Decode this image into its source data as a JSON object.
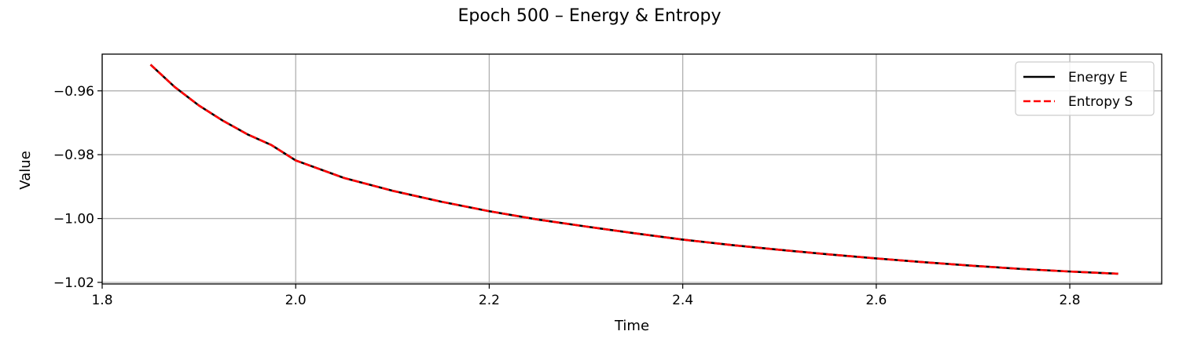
{
  "chart_data": {
    "type": "line",
    "title": "Epoch 500 – Energy & Entropy",
    "xlabel": "Time",
    "ylabel": "Value",
    "xlim": [
      1.8,
      2.895
    ],
    "ylim": [
      -1.0205,
      -0.9485
    ],
    "xticks": [
      1.8,
      2.0,
      2.2,
      2.4,
      2.6,
      2.8
    ],
    "xtick_labels": [
      "1.8",
      "2.0",
      "2.2",
      "2.4",
      "2.6",
      "2.8"
    ],
    "yticks": [
      -1.02,
      -1.0,
      -0.98,
      -0.96
    ],
    "ytick_labels": [
      "−1.02",
      "−1.00",
      "−0.98",
      "−0.96"
    ],
    "grid": true,
    "legend_position": "top-right",
    "x": [
      1.85,
      1.875,
      1.9,
      1.925,
      1.95,
      1.975,
      2.0,
      2.05,
      2.1,
      2.15,
      2.2,
      2.25,
      2.3,
      2.35,
      2.4,
      2.45,
      2.5,
      2.55,
      2.6,
      2.65,
      2.7,
      2.75,
      2.8,
      2.85
    ],
    "series": [
      {
        "name": "Energy E",
        "color": "#000000",
        "dash": "solid",
        "values": [
          -0.9518,
          -0.9588,
          -0.9646,
          -0.9694,
          -0.9736,
          -0.977,
          -0.9818,
          -0.9873,
          -0.9913,
          -0.9947,
          -0.9977,
          -1.0003,
          -1.0025,
          -1.0046,
          -1.0066,
          -1.0083,
          -1.0098,
          -1.0112,
          -1.0125,
          -1.0137,
          -1.0148,
          -1.0158,
          -1.0166,
          -1.0173
        ]
      },
      {
        "name": "Entropy S",
        "color": "#ff0000",
        "dash": "dashed",
        "values": [
          -0.9518,
          -0.9588,
          -0.9646,
          -0.9694,
          -0.9736,
          -0.977,
          -0.9818,
          -0.9873,
          -0.9913,
          -0.9947,
          -0.9977,
          -1.0003,
          -1.0025,
          -1.0046,
          -1.0066,
          -1.0083,
          -1.0098,
          -1.0112,
          -1.0125,
          -1.0137,
          -1.0148,
          -1.0158,
          -1.0166,
          -1.0173
        ]
      }
    ]
  }
}
